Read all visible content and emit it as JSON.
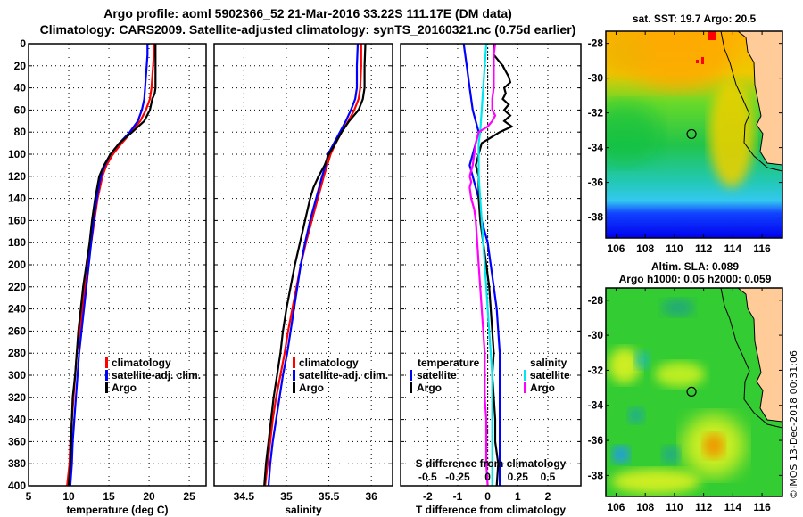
{
  "title": {
    "line1": "Argo profile: aoml 5902366_52 21-Mar-2016 33.22S 111.17E (DM data)",
    "line2": "Climatology: CARS2009. Satellite-adjusted climatology: synTS_20160321.nc (0.75d earlier)"
  },
  "colors": {
    "climatology": "#ff0000",
    "satellite": "#0000ff",
    "argo": "#000000",
    "sal_satellite": "#00e5ee",
    "sal_argo": "#ff00ff",
    "land": "#ffcc99"
  },
  "chart_data": [
    {
      "type": "line",
      "name": "temperature-profile",
      "xlabel": "temperature (deg C)",
      "ylabel": "depth",
      "xlim": [
        5,
        27.1
      ],
      "ylim": [
        0,
        400
      ],
      "y_inverted": true,
      "xticks": [
        5,
        10,
        15,
        20,
        25
      ],
      "yticks": [
        0,
        20,
        40,
        60,
        80,
        100,
        120,
        140,
        160,
        180,
        200,
        220,
        240,
        260,
        280,
        300,
        320,
        340,
        360,
        380,
        400
      ],
      "grid": true,
      "legend": {
        "placement": "lower-right",
        "entries": [
          "climatology",
          "satellite-adj. clim.",
          "Argo"
        ]
      },
      "series": [
        {
          "name": "climatology",
          "color": "climatology",
          "depth": [
            0,
            10,
            20,
            30,
            40,
            50,
            60,
            70,
            80,
            90,
            100,
            110,
            120,
            140,
            160,
            180,
            200,
            220,
            240,
            260,
            280,
            300,
            320,
            340,
            360,
            380,
            400
          ],
          "values": [
            20.6,
            20.6,
            20.5,
            20.4,
            20.3,
            20.1,
            19.6,
            18.9,
            17.8,
            16.6,
            15.5,
            14.7,
            14.2,
            13.6,
            13.2,
            12.8,
            12.4,
            12.0,
            11.7,
            11.4,
            11.0,
            10.8,
            10.6,
            10.4,
            10.2,
            10.1,
            9.8
          ]
        },
        {
          "name": "satellite-adj. clim.",
          "color": "satellite",
          "depth": [
            0,
            10,
            20,
            30,
            40,
            50,
            60,
            70,
            80,
            90,
            100,
            110,
            120,
            140,
            160,
            180,
            200,
            220,
            240,
            260,
            280,
            300,
            320,
            340,
            360,
            380,
            400
          ],
          "values": [
            19.8,
            19.8,
            19.7,
            19.6,
            19.5,
            19.4,
            19.1,
            18.6,
            17.6,
            16.3,
            15.2,
            14.5,
            14.0,
            13.5,
            13.1,
            12.8,
            12.5,
            12.2,
            11.9,
            11.6,
            11.3,
            11.1,
            10.9,
            10.7,
            10.5,
            10.4,
            10.2
          ]
        },
        {
          "name": "Argo",
          "color": "argo",
          "depth": [
            0,
            10,
            20,
            30,
            40,
            45,
            50,
            60,
            70,
            80,
            90,
            100,
            110,
            120,
            140,
            160,
            180,
            200,
            220,
            240,
            260,
            280,
            300,
            320,
            340,
            360,
            380,
            400
          ],
          "values": [
            20.8,
            20.8,
            20.8,
            20.8,
            20.8,
            20.7,
            20.4,
            20.1,
            19.4,
            17.9,
            16.3,
            15.2,
            14.4,
            13.8,
            13.3,
            12.9,
            12.6,
            12.2,
            11.8,
            11.5,
            11.2,
            11.0,
            10.8,
            10.5,
            10.4,
            10.3,
            10.2,
            10.0
          ]
        }
      ]
    },
    {
      "type": "line",
      "name": "salinity-profile",
      "xlabel": "salinity",
      "ylabel": "depth",
      "xlim": [
        34.15,
        36.25
      ],
      "ylim": [
        0,
        400
      ],
      "y_inverted": true,
      "xticks": [
        34.5,
        35,
        35.5,
        36
      ],
      "grid": true,
      "legend": {
        "placement": "lower-right",
        "entries": [
          "climatology",
          "satellite-adj. clim.",
          "Argo"
        ]
      },
      "series": [
        {
          "name": "climatology",
          "color": "climatology",
          "depth": [
            0,
            20,
            40,
            50,
            60,
            70,
            80,
            90,
            100,
            110,
            120,
            140,
            160,
            180,
            200,
            220,
            240,
            260,
            280,
            300,
            320,
            340,
            360,
            380,
            400
          ],
          "values": [
            35.88,
            35.88,
            35.87,
            35.85,
            35.8,
            35.73,
            35.65,
            35.58,
            35.52,
            35.48,
            35.44,
            35.37,
            35.3,
            35.23,
            35.17,
            35.12,
            35.07,
            35.02,
            34.98,
            34.93,
            34.88,
            34.84,
            34.81,
            34.78,
            34.75
          ]
        },
        {
          "name": "satellite-adj. clim.",
          "color": "satellite",
          "depth": [
            0,
            20,
            40,
            50,
            60,
            70,
            80,
            90,
            100,
            110,
            120,
            140,
            160,
            180,
            200,
            220,
            240,
            260,
            280,
            300,
            320,
            340,
            360,
            380,
            400
          ],
          "values": [
            35.84,
            35.83,
            35.83,
            35.81,
            35.76,
            35.7,
            35.63,
            35.56,
            35.49,
            35.46,
            35.42,
            35.35,
            35.28,
            35.22,
            35.17,
            35.13,
            35.09,
            35.05,
            35.01,
            34.96,
            34.92,
            34.88,
            34.84,
            34.81,
            34.79
          ]
        },
        {
          "name": "Argo",
          "color": "argo",
          "depth": [
            0,
            20,
            40,
            50,
            60,
            70,
            80,
            90,
            100,
            110,
            120,
            130,
            140,
            160,
            180,
            200,
            220,
            240,
            260,
            280,
            300,
            320,
            340,
            360,
            380,
            400
          ],
          "values": [
            35.93,
            35.92,
            35.92,
            35.9,
            35.85,
            35.74,
            35.65,
            35.58,
            35.5,
            35.45,
            35.38,
            35.32,
            35.28,
            35.22,
            35.16,
            35.1,
            35.05,
            35.0,
            34.96,
            34.93,
            34.89,
            34.85,
            34.82,
            34.79,
            34.76,
            34.74
          ]
        }
      ]
    },
    {
      "type": "line",
      "name": "difference-profile",
      "xlabel": "T difference from climatology",
      "xlabel_top": "S difference from climatology",
      "ylabel": "depth",
      "xlim": [
        -2.9,
        3.1
      ],
      "ylim": [
        0,
        400
      ],
      "y_inverted": true,
      "xticks": [
        -2,
        -1,
        0,
        1,
        2
      ],
      "s_xticks": [
        "-0.5",
        "-0.25",
        "0",
        "0.25",
        "0.5"
      ],
      "s_xticks_values_T_units": [
        -2,
        -1,
        0,
        1,
        2
      ],
      "grid": true,
      "legend": {
        "placement": "lower",
        "temperature": {
          "heading": "temperature",
          "entries": [
            "satellite",
            "Argo"
          ]
        },
        "salinity": {
          "heading": "salinity",
          "entries": [
            "satellite",
            "Argo"
          ]
        }
      },
      "series": [
        {
          "name": "T satellite",
          "color": "satellite",
          "depth": [
            0,
            20,
            40,
            60,
            80,
            90,
            100,
            110,
            120,
            140,
            160,
            180,
            200,
            220,
            240,
            260,
            280,
            300,
            320,
            340,
            360,
            380,
            400
          ],
          "values": [
            -0.8,
            -0.7,
            -0.6,
            -0.5,
            -0.3,
            -0.4,
            -0.5,
            -0.6,
            -0.5,
            -0.3,
            -0.2,
            0.0,
            0.1,
            0.2,
            0.3,
            0.35,
            0.4,
            0.4,
            0.4,
            0.4,
            0.4,
            0.4,
            0.4
          ]
        },
        {
          "name": "T Argo",
          "color": "argo",
          "depth": [
            0,
            10,
            15,
            20,
            25,
            30,
            35,
            40,
            45,
            50,
            55,
            60,
            65,
            70,
            75,
            80,
            85,
            90,
            100,
            110,
            120,
            140,
            160,
            180,
            200,
            220,
            240,
            260,
            280,
            300,
            320,
            340,
            360,
            380,
            400
          ],
          "values": [
            0.2,
            0.2,
            0.35,
            0.5,
            0.6,
            0.7,
            0.75,
            0.55,
            0.6,
            0.5,
            0.7,
            0.55,
            0.75,
            0.55,
            0.8,
            0.4,
            0.1,
            -0.2,
            -0.3,
            -0.4,
            -0.3,
            -0.3,
            -0.25,
            -0.15,
            -0.05,
            0.05,
            0.1,
            0.15,
            0.2,
            0.15,
            0.2,
            0.25,
            0.25,
            0.35,
            0.3
          ]
        },
        {
          "name": "S satellite",
          "color": "sal_satellite",
          "depth": [
            0,
            20,
            40,
            60,
            80,
            90,
            100,
            120,
            140,
            160,
            180,
            200,
            220,
            240,
            260,
            280,
            300,
            320,
            340,
            360,
            380,
            400
          ],
          "values": [
            -0.05,
            -0.1,
            -0.15,
            -0.2,
            -0.25,
            -0.3,
            -0.3,
            -0.3,
            -0.25,
            -0.2,
            -0.15,
            -0.1,
            -0.05,
            0.0,
            0.05,
            0.1,
            0.15,
            0.15,
            0.15,
            0.15,
            0.15,
            0.15
          ]
        },
        {
          "name": "S Argo",
          "color": "sal_argo",
          "depth": [
            0,
            10,
            20,
            30,
            40,
            50,
            60,
            65,
            70,
            75,
            80,
            90,
            100,
            110,
            120,
            125,
            130,
            140,
            150,
            160,
            180,
            200,
            220,
            240,
            260,
            280,
            300,
            320,
            340,
            360,
            380,
            400
          ],
          "values": [
            0.25,
            0.2,
            0.2,
            0.2,
            0.2,
            0.15,
            0.15,
            0.25,
            0.15,
            0.0,
            -0.3,
            -0.4,
            -0.45,
            -0.5,
            -0.6,
            -0.55,
            -0.6,
            -0.55,
            -0.45,
            -0.4,
            -0.35,
            -0.3,
            -0.25,
            -0.2,
            -0.15,
            -0.1,
            -0.1,
            -0.1,
            -0.05,
            -0.05,
            -0.05,
            0.0
          ]
        }
      ]
    },
    {
      "type": "heatmap",
      "name": "sst-map",
      "title": "sat. SST: 19.7 Argo: 20.5",
      "xlim": [
        105.3,
        117.4
      ],
      "ylim": [
        -39.2,
        -27.3
      ],
      "xticks": [
        106,
        108,
        110,
        112,
        114,
        116
      ],
      "yticks": [
        -28,
        -30,
        -32,
        -34,
        -36,
        -38
      ],
      "argo_position": {
        "lon": 111.17,
        "lat": -33.22
      }
    },
    {
      "type": "heatmap",
      "name": "sla-map",
      "title": "Altim. SLA: 0.089",
      "subtitle": "Argo h1000: 0.05 h2000: 0.059",
      "xlim": [
        105.3,
        117.4
      ],
      "ylim": [
        -39.2,
        -27.3
      ],
      "xticks": [
        106,
        108,
        110,
        112,
        114,
        116
      ],
      "yticks": [
        -28,
        -30,
        -32,
        -34,
        -36,
        -38
      ],
      "argo_position": {
        "lon": 111.17,
        "lat": -33.22
      }
    }
  ],
  "stamp": "©IMOS 13-Dec-2018 00:31:06"
}
